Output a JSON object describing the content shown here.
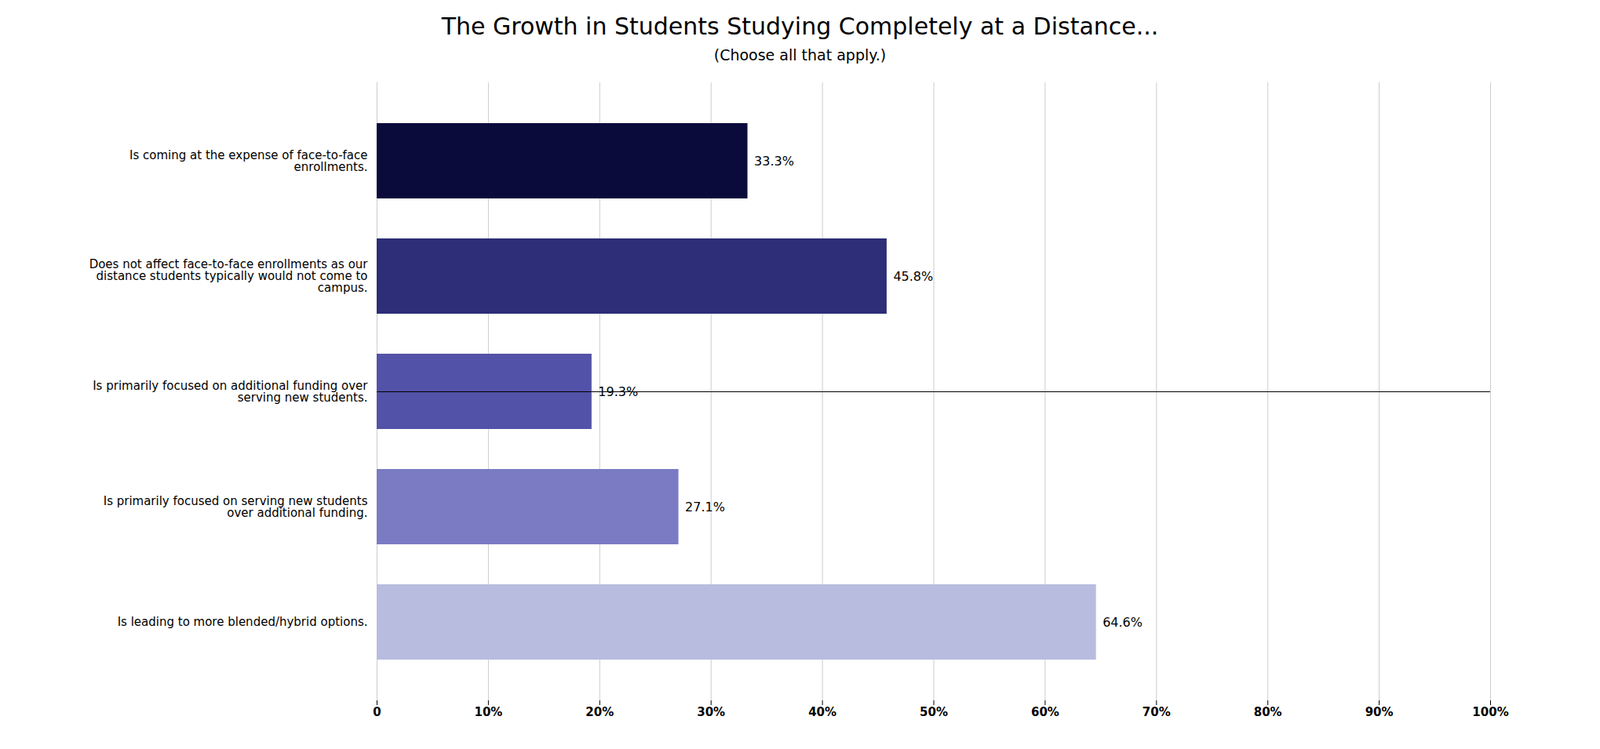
{
  "chart_data": {
    "type": "bar",
    "orientation": "horizontal",
    "title": "The Growth in Students Studying Completely at a Distance...",
    "subtitle": "(Choose all that apply.)",
    "categories": [
      "Is coming at the expense of face-to-face\nenrollments.",
      "Does not affect face-to-face enrollments as our\ndistance students typically would not come to\ncampus.",
      "Is primarily focused on additional funding over\nserving new students.",
      "Is primarily focused on serving new students\nover additional funding.",
      "Is leading to more blended/hybrid options."
    ],
    "values": [
      33.3,
      45.8,
      19.3,
      27.1,
      64.6
    ],
    "value_labels": [
      "33.3%",
      "45.8%",
      "19.3%",
      "27.1%",
      "64.6%"
    ],
    "colors": [
      "#0b0b3b",
      "#2d2d78",
      "#5252a8",
      "#7b7bc4",
      "#b8bcdf"
    ],
    "xlim": [
      0,
      100
    ],
    "xticks": [
      0,
      {
        "value": 10,
        "label": "10%"
      },
      {
        "value": 20,
        "label": "20%"
      },
      {
        "value": 30,
        "label": "30%"
      },
      {
        "value": 40,
        "label": "40%"
      },
      {
        "value": 50,
        "label": "50%"
      },
      {
        "value": 60,
        "label": "60%"
      },
      {
        "value": 70,
        "label": "70%"
      },
      {
        "value": 80,
        "label": "80%"
      },
      {
        "value": 90,
        "label": "90%"
      },
      {
        "value": 100,
        "label": "100%"
      }
    ],
    "grid": true,
    "data_labels": true
  }
}
